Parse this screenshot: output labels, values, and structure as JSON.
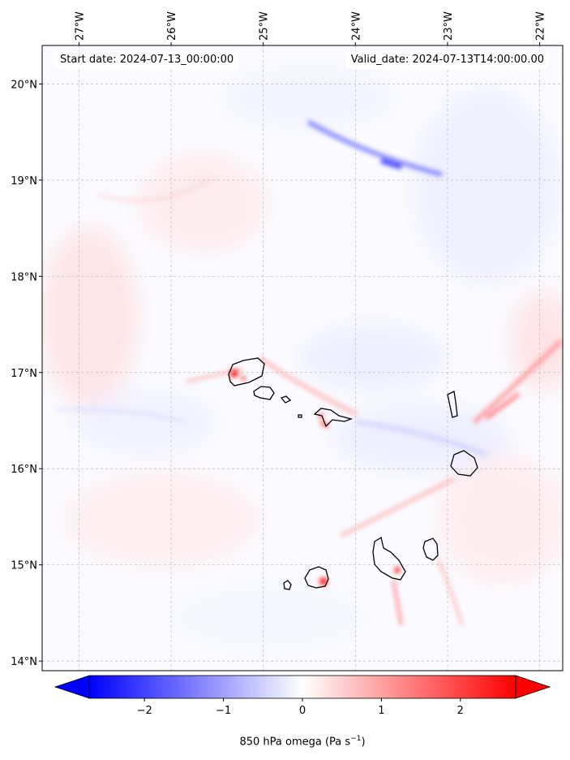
{
  "header": {
    "start_date": "Start date: 2024-07-13_00:00:00",
    "valid_date": "Valid_date: 2024-07-13T14:00:00.00"
  },
  "axes": {
    "lon_ticks": [
      "27°W",
      "26°W",
      "25°W",
      "24°W",
      "23°W",
      "22°W"
    ],
    "lat_ticks": [
      "20°N",
      "19°N",
      "18°N",
      "17°N",
      "16°N",
      "15°N",
      "14°N"
    ]
  },
  "colorbar": {
    "label_prefix": "850 hPa omega (Pa s",
    "label_exp": "−1",
    "label_suffix": ")",
    "ticks": [
      "−2",
      "−1",
      "0",
      "1",
      "2"
    ],
    "range": [
      -2.7,
      2.7
    ],
    "colormap": "bwr"
  },
  "colors": {
    "negative": "#0000ff",
    "neutral": "#ffffff",
    "positive": "#ff0000",
    "coastline": "#000000",
    "gridline": "#bbbbbb"
  },
  "map_data": {
    "projection": "PlateCarree",
    "lon_range": [
      -27.4,
      -21.75
    ],
    "lat_range": [
      13.9,
      20.4
    ],
    "gridlines": true,
    "features": [
      {
        "name": "upper-jet-streak",
        "sign": "negative",
        "lon": -23.6,
        "lat": 19.15,
        "strength": 0.9
      },
      {
        "name": "santo-antao-updraft",
        "sign": "positive",
        "lon": -25.2,
        "lat": 17.0,
        "strength": 0.85
      },
      {
        "name": "sao-nicolau-updraft",
        "sign": "positive",
        "lon": -24.35,
        "lat": 16.6,
        "strength": 0.7
      },
      {
        "name": "fogo-updraft",
        "sign": "positive",
        "lon": -24.35,
        "lat": 14.85,
        "strength": 0.9
      },
      {
        "name": "santiago-updraft",
        "sign": "positive",
        "lon": -23.4,
        "lat": 14.9,
        "strength": 0.6
      },
      {
        "name": "sal-boavista-band",
        "sign": "positive",
        "lon": -22.0,
        "lat": 16.9,
        "strength": 0.65
      }
    ],
    "islands": [
      "Santo Antão",
      "São Vicente",
      "Santa Luzia",
      "São Nicolau",
      "Sal",
      "Boa Vista",
      "Maio",
      "Santiago",
      "Fogo",
      "Brava"
    ]
  }
}
